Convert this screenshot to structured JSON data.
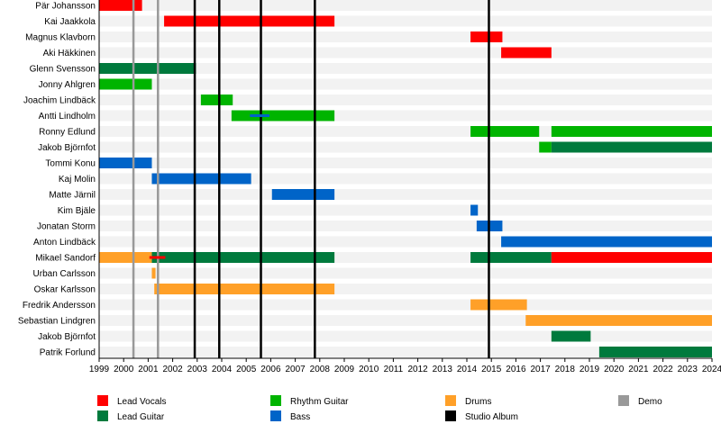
{
  "chart_data": {
    "type": "timeline",
    "xlim": [
      1999,
      2024
    ],
    "x_ticks": [
      1999,
      2000,
      2001,
      2002,
      2003,
      2004,
      2005,
      2006,
      2007,
      2008,
      2009,
      2010,
      2011,
      2012,
      2013,
      2014,
      2015,
      2016,
      2017,
      2018,
      2019,
      2020,
      2021,
      2022,
      2023,
      2024
    ],
    "roles": {
      "lead_vocals": {
        "label": "Lead Vocals",
        "color": "#ff0000"
      },
      "lead_guitar": {
        "label": "Lead Guitar",
        "color": "#007a3d"
      },
      "rhythm_guitar": {
        "label": "Rhythm Guitar",
        "color": "#00b400"
      },
      "bass": {
        "label": "Bass",
        "color": "#0064c8"
      },
      "drums": {
        "label": "Drums",
        "color": "#ffa028"
      },
      "demo": {
        "label": "Demo",
        "color": "#999999"
      },
      "studio_album": {
        "label": "Studio Album",
        "color": "#000000"
      }
    },
    "members": [
      {
        "name": "Pär Johansson",
        "spans": [
          {
            "role": "lead_vocals",
            "start": 1999,
            "end": 2000.75
          }
        ]
      },
      {
        "name": "Kai Jaakkola",
        "spans": [
          {
            "role": "lead_vocals",
            "start": 2001.65,
            "end": 2008.6
          }
        ]
      },
      {
        "name": "Magnus Klavborn",
        "spans": [
          {
            "role": "lead_vocals",
            "start": 2014.15,
            "end": 2015.45
          }
        ]
      },
      {
        "name": "Aki Häkkinen",
        "spans": [
          {
            "role": "lead_vocals",
            "start": 2015.4,
            "end": 2017.45
          }
        ]
      },
      {
        "name": "Glenn Svensson",
        "spans": [
          {
            "role": "lead_guitar",
            "start": 1999,
            "end": 2002.95
          }
        ]
      },
      {
        "name": "Jonny Ahlgren",
        "spans": [
          {
            "role": "rhythm_guitar",
            "start": 1999,
            "end": 2001.15
          }
        ]
      },
      {
        "name": "Joachim Lindbäck",
        "spans": [
          {
            "role": "rhythm_guitar",
            "start": 2003.15,
            "end": 2004.45
          }
        ]
      },
      {
        "name": "Antti Lindholm",
        "spans": [
          {
            "role": "rhythm_guitar",
            "start": 2004.4,
            "end": 2008.6
          },
          {
            "role": "bass",
            "start": 2005.15,
            "end": 2005.95,
            "thin": true
          }
        ]
      },
      {
        "name": "Ronny Edlund",
        "spans": [
          {
            "role": "rhythm_guitar",
            "start": 2014.15,
            "end": 2016.95
          },
          {
            "role": "rhythm_guitar",
            "start": 2017.45,
            "end": 2024
          }
        ]
      },
      {
        "name": "Jakob Björnfot",
        "spans": [
          {
            "role": "rhythm_guitar",
            "start": 2016.95,
            "end": 2017.45
          },
          {
            "role": "lead_guitar",
            "start": 2017.45,
            "end": 2024
          }
        ]
      },
      {
        "name": "Tommi Konu",
        "spans": [
          {
            "role": "bass",
            "start": 1999,
            "end": 2001.15
          }
        ]
      },
      {
        "name": "Kaj Molin",
        "spans": [
          {
            "role": "bass",
            "start": 2001.15,
            "end": 2005.2
          }
        ]
      },
      {
        "name": "Matte Järnil",
        "spans": [
          {
            "role": "bass",
            "start": 2006.05,
            "end": 2008.6
          }
        ]
      },
      {
        "name": "Kim Bjäle",
        "spans": [
          {
            "role": "bass",
            "start": 2014.15,
            "end": 2014.45
          }
        ]
      },
      {
        "name": "Jonatan Storm",
        "spans": [
          {
            "role": "bass",
            "start": 2014.4,
            "end": 2015.45
          }
        ]
      },
      {
        "name": "Anton Lindbäck",
        "spans": [
          {
            "role": "bass",
            "start": 2015.4,
            "end": 2024
          }
        ]
      },
      {
        "name": "Mikael Sandorf",
        "spans": [
          {
            "role": "drums",
            "start": 1999,
            "end": 2001.15
          },
          {
            "role": "lead_guitar",
            "start": 2001.15,
            "end": 2008.6
          },
          {
            "role": "lead_vocals",
            "start": 2001.05,
            "end": 2001.7,
            "thin": true
          },
          {
            "role": "lead_guitar",
            "start": 2014.15,
            "end": 2017.45
          },
          {
            "role": "lead_vocals",
            "start": 2017.45,
            "end": 2024
          }
        ]
      },
      {
        "name": "Urban Carlsson",
        "spans": [
          {
            "role": "drums",
            "start": 2001.15,
            "end": 2001.3
          }
        ]
      },
      {
        "name": "Oskar Karlsson",
        "spans": [
          {
            "role": "drums",
            "start": 2001.25,
            "end": 2008.6
          }
        ]
      },
      {
        "name": "Fredrik Andersson",
        "spans": [
          {
            "role": "drums",
            "start": 2014.15,
            "end": 2016.45
          }
        ]
      },
      {
        "name": "Sebastian Lindgren",
        "spans": [
          {
            "role": "drums",
            "start": 2016.4,
            "end": 2024
          }
        ]
      },
      {
        "name": "Jakob Björnfot",
        "spans": [
          {
            "role": "lead_guitar",
            "start": 2017.45,
            "end": 2019.05
          }
        ]
      },
      {
        "name": "Patrik Forlund",
        "spans": [
          {
            "role": "lead_guitar",
            "start": 2019.4,
            "end": 2024
          }
        ]
      }
    ],
    "demo_releases": [
      2000.4,
      2001.4
    ],
    "studio_albums": [
      2002.9,
      2003.9,
      2005.6,
      2007.8,
      2014.9
    ],
    "legend": {
      "placement": "bottom",
      "entries": [
        "lead_vocals",
        "lead_guitar",
        "rhythm_guitar",
        "bass",
        "drums",
        "studio_album",
        "demo"
      ]
    },
    "grid": false
  }
}
